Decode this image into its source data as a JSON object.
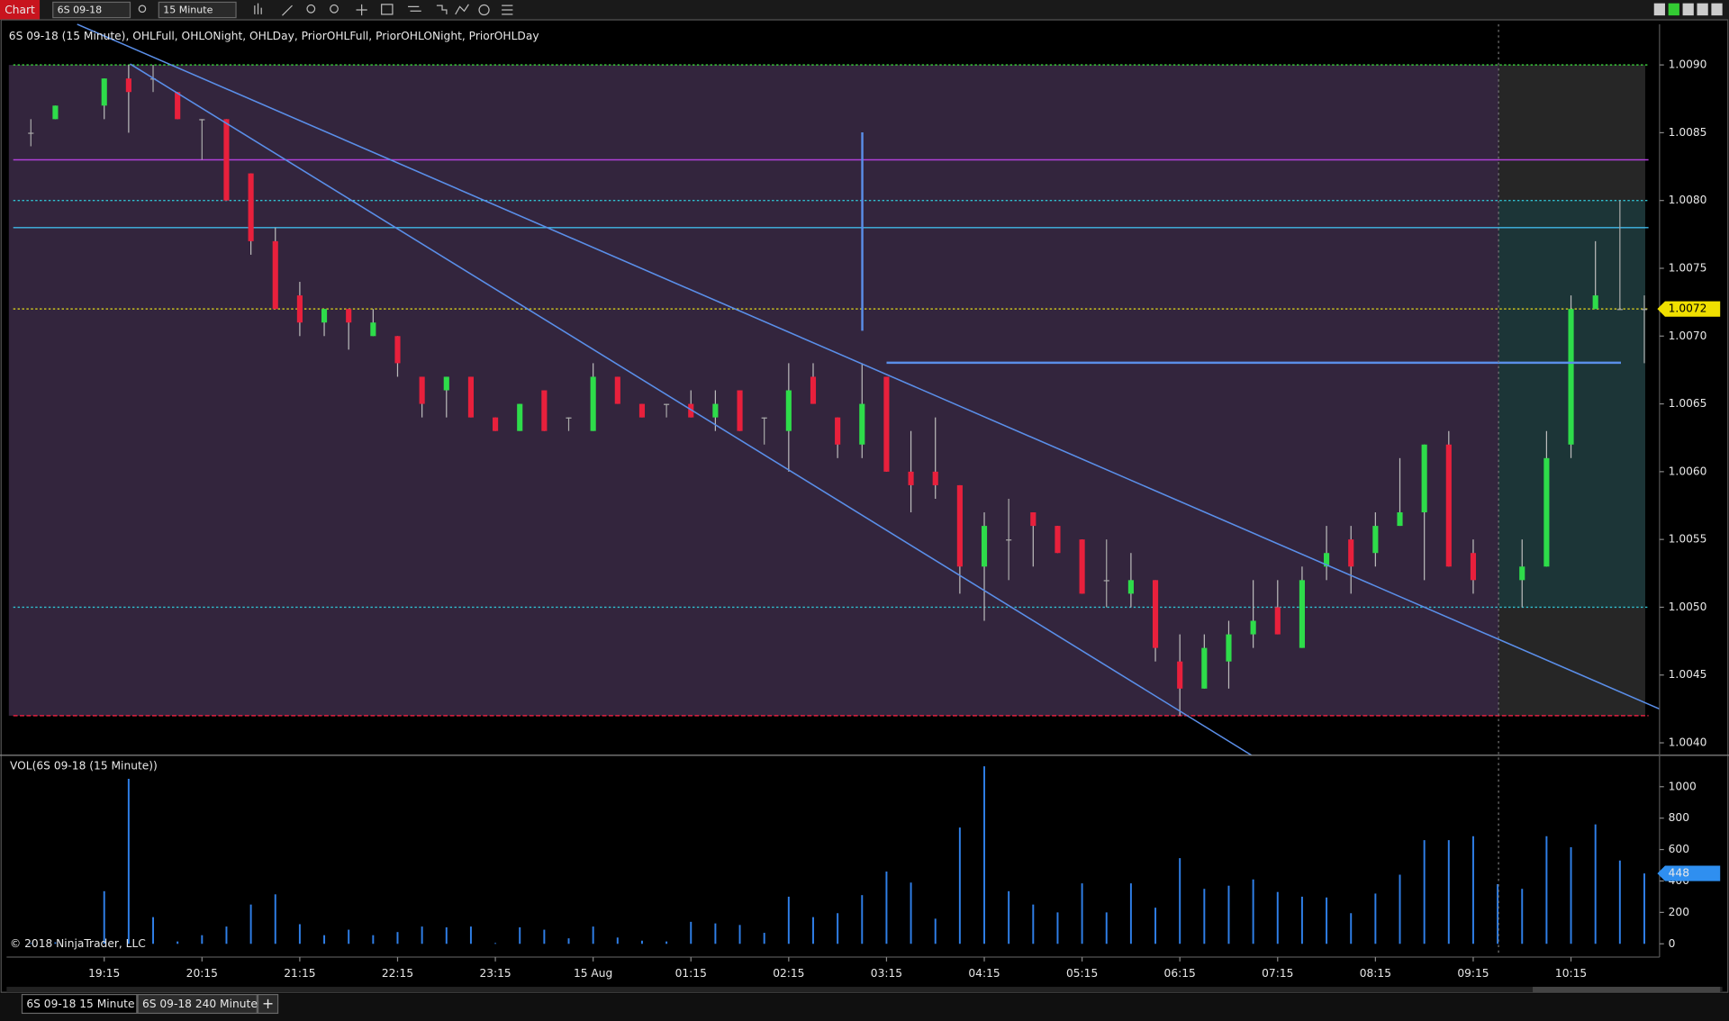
{
  "toolbar": {
    "tab": "Chart",
    "instrument": "6S 09-18",
    "interval": "15 Minute"
  },
  "tabs": [
    "6S 09-18 15 Minute",
    "6S 09-18 240 Minute",
    "+"
  ],
  "copyright": "© 2018 NinjaTrader, LLC",
  "chart_data": [
    {
      "type": "candlestick",
      "title": "6S 09-18 (15 Minute), OHLFull, OHLONight, OHLDay, PriorOHLFull, PriorOHLONight, PriorOHLDay",
      "categories": [
        null,
        null,
        null,
        "19:15",
        null,
        null,
        null,
        "20:15",
        null,
        null,
        null,
        "21:15",
        null,
        null,
        null,
        "22:15",
        null,
        null,
        null,
        "23:15",
        null,
        null,
        null,
        "15 Aug",
        null,
        null,
        null,
        "01:15",
        null,
        null,
        null,
        "02:15",
        null,
        null,
        null,
        "03:15",
        null,
        null,
        null,
        "04:15",
        null,
        null,
        null,
        "05:15",
        null,
        null,
        null,
        "06:15",
        null,
        null,
        null,
        "07:15",
        null,
        null,
        null,
        "08:15",
        null,
        null,
        null,
        "09:15",
        null,
        null,
        null,
        "10:15",
        null,
        null,
        null
      ],
      "open": [
        1.0085,
        1.0086,
        null,
        1.0087,
        1.0089,
        1.0089,
        1.0088,
        1.0086,
        1.0086,
        1.0082,
        1.0077,
        1.0073,
        1.0071,
        1.0072,
        1.007,
        1.007,
        1.0067,
        1.0066,
        1.0067,
        1.0064,
        1.0063,
        1.0066,
        1.0064,
        1.0063,
        1.0067,
        1.0065,
        1.0065,
        1.0065,
        1.0064,
        1.0066,
        1.0064,
        1.0063,
        1.0067,
        1.0064,
        1.0062,
        1.0067,
        1.006,
        1.006,
        1.0059,
        1.0053,
        1.0055,
        1.0057,
        1.0056,
        1.0055,
        1.0052,
        1.0051,
        1.0052,
        1.0046,
        1.0044,
        1.0046,
        1.0048,
        1.005,
        1.0047,
        1.0053,
        1.0055,
        1.0054,
        1.0056,
        1.0057,
        1.0062,
        1.0054,
        null,
        1.0052,
        1.0053,
        1.0062,
        1.0072,
        1.0072,
        1.0072
      ],
      "high": [
        1.0086,
        1.0087,
        null,
        1.0089,
        1.009,
        1.009,
        1.0088,
        1.0086,
        1.0086,
        1.0082,
        1.0078,
        1.0074,
        1.0072,
        1.0072,
        1.0072,
        1.007,
        1.0067,
        1.0067,
        1.0067,
        1.0064,
        1.0065,
        1.0066,
        1.0064,
        1.0068,
        1.0067,
        1.0065,
        1.0065,
        1.0066,
        1.0066,
        1.0066,
        1.0064,
        1.0068,
        1.0068,
        1.0064,
        1.0068,
        1.0067,
        1.0063,
        1.0064,
        1.0059,
        1.0057,
        1.0058,
        1.0057,
        1.0056,
        1.0055,
        1.0055,
        1.0054,
        1.0052,
        1.0048,
        1.0048,
        1.0049,
        1.0052,
        1.0052,
        1.0053,
        1.0056,
        1.0056,
        1.0057,
        1.0061,
        1.0062,
        1.0063,
        1.0055,
        null,
        1.0055,
        1.0063,
        1.0073,
        1.0077,
        1.008,
        1.0073
      ],
      "low": [
        1.0084,
        1.0086,
        null,
        1.0086,
        1.0085,
        1.0088,
        1.0086,
        1.0083,
        1.008,
        1.0076,
        1.0072,
        1.007,
        1.007,
        1.0069,
        1.007,
        1.0067,
        1.0064,
        1.0064,
        1.0064,
        1.0063,
        1.0063,
        1.0063,
        1.0063,
        1.0063,
        1.0065,
        1.0064,
        1.0064,
        1.0064,
        1.0063,
        1.0063,
        1.0062,
        1.006,
        1.0065,
        1.0061,
        1.0061,
        1.006,
        1.0057,
        1.0058,
        1.0051,
        1.0049,
        1.0052,
        1.0053,
        1.0054,
        1.0051,
        1.005,
        1.005,
        1.0046,
        1.0042,
        1.0044,
        1.0044,
        1.0047,
        1.0048,
        1.0047,
        1.0052,
        1.0051,
        1.0053,
        1.0056,
        1.0052,
        1.0053,
        1.0051,
        null,
        1.005,
        1.0053,
        1.0061,
        1.0072,
        1.0072,
        1.0068
      ],
      "close": [
        1.0085,
        1.0087,
        null,
        1.0089,
        1.0088,
        1.0089,
        1.0086,
        1.0086,
        1.008,
        1.0077,
        1.0072,
        1.0071,
        1.0072,
        1.0071,
        1.0071,
        1.0068,
        1.0065,
        1.0067,
        1.0064,
        1.0063,
        1.0065,
        1.0063,
        1.0064,
        1.0067,
        1.0065,
        1.0064,
        1.0065,
        1.0064,
        1.0065,
        1.0063,
        1.0064,
        1.0066,
        1.0065,
        1.0062,
        1.0065,
        1.006,
        1.0059,
        1.0059,
        1.0053,
        1.0056,
        1.0055,
        1.0056,
        1.0054,
        1.0051,
        1.0052,
        1.0052,
        1.0047,
        1.0044,
        1.0047,
        1.0048,
        1.0049,
        1.0048,
        1.0052,
        1.0054,
        1.0053,
        1.0056,
        1.0057,
        1.0062,
        1.0053,
        1.0052,
        null,
        1.0053,
        1.0061,
        1.0072,
        1.0073,
        1.0072,
        1.0072
      ],
      "up_color": "#2edc4a",
      "down_color": "#e8203c",
      "flat_color": "#a8a8a8",
      "levels": [
        {
          "value": 1.009,
          "color": "#38c838",
          "dash": "2,2"
        },
        {
          "value": 1.0083,
          "color": "#b040d8"
        },
        {
          "value": 1.008,
          "color": "#30c0d0",
          "dash": "2,2"
        },
        {
          "value": 1.0078,
          "color": "#40b8e8"
        },
        {
          "value": 1.0072,
          "color": "#c8c020",
          "dash": "2,2"
        },
        {
          "value": 1.005,
          "color": "#30c0d0",
          "dash": "2,2"
        },
        {
          "value": 1.0042,
          "color": "#e02040",
          "dash": "4,2"
        }
      ],
      "last_price": {
        "value": 1.0072,
        "label": "1.0072"
      },
      "ylim": [
        1.0039,
        1.0093
      ],
      "yticks": [
        {
          "value": 1.004,
          "label": "1.0040"
        },
        1.0045,
        {
          "value": 1.005,
          "label": "1.0050"
        },
        1.0055,
        {
          "value": 1.006,
          "label": "1.0060"
        },
        1.0065,
        {
          "value": 1.007,
          "label": "1.0070"
        },
        1.0075,
        {
          "value": 1.008,
          "label": "1.0080"
        },
        1.0085,
        {
          "value": 1.009,
          "label": "1.0090"
        }
      ]
    },
    {
      "type": "bar",
      "title": "VOL(6S 09-18 (15 Minute))",
      "values": [
        5,
        10,
        null,
        335,
        1050,
        170,
        15,
        55,
        110,
        250,
        315,
        125,
        55,
        90,
        55,
        75,
        110,
        105,
        110,
        5,
        105,
        90,
        35,
        110,
        40,
        20,
        15,
        140,
        130,
        120,
        70,
        300,
        170,
        195,
        310,
        460,
        390,
        160,
        740,
        1130,
        335,
        250,
        200,
        385,
        200,
        385,
        230,
        545,
        350,
        370,
        410,
        330,
        300,
        295,
        195,
        320,
        440,
        660,
        660,
        685,
        380,
        350,
        685,
        615,
        760,
        530,
        448
      ],
      "color": "#2f7fe8",
      "last_value": 448,
      "ylim": [
        0,
        1200
      ],
      "yticks": [
        0,
        200,
        400,
        600,
        800,
        1000
      ]
    }
  ]
}
